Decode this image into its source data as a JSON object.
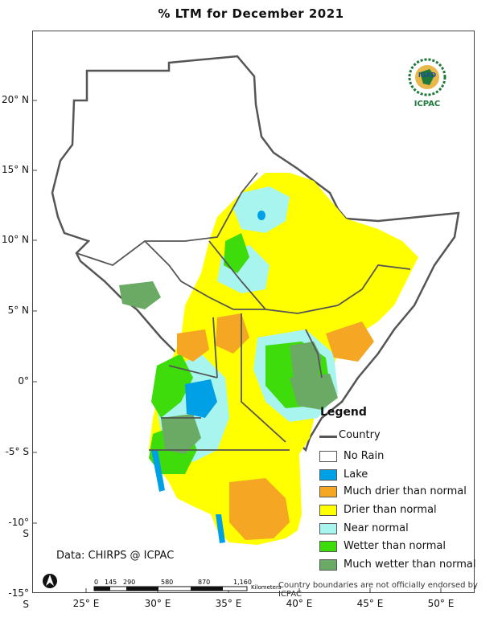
{
  "title": "% LTM for December 2021",
  "source": "Data: CHIRPS @ ICPAC",
  "disclaimer": "Country boundaries are not officially endorsed by ICPAC",
  "logo": {
    "text_top": "IGAD",
    "text_bottom": "ICPAC"
  },
  "axes": {
    "lat_ticks": [
      "20° N",
      "15° N",
      "10° N",
      "5° N",
      "0°",
      "-5° S",
      "-10° S",
      "-15° S"
    ],
    "lon_ticks": [
      "25° E",
      "30° E",
      "35° E",
      "40° E",
      "45° E",
      "50° E"
    ]
  },
  "legend": {
    "title": "Legend",
    "country_label": "Country",
    "items": [
      {
        "label": "No Rain",
        "color": "#ffffff"
      },
      {
        "label": "Lake",
        "color": "#00a0e6"
      },
      {
        "label": "Much drier than normal",
        "color": "#f5a623"
      },
      {
        "label": "Drier than normal",
        "color": "#ffff00"
      },
      {
        "label": "Near normal",
        "color": "#a8f5f0"
      },
      {
        "label": "Wetter than normal",
        "color": "#3ddc0a"
      },
      {
        "label": "Much wetter than normal",
        "color": "#6aaa64"
      }
    ]
  },
  "scale_bar": {
    "ticks": [
      "0",
      "145",
      "290",
      "580",
      "870",
      "1,160"
    ],
    "unit": "Kilometers"
  },
  "north_arrow": "north-arrow-icon"
}
